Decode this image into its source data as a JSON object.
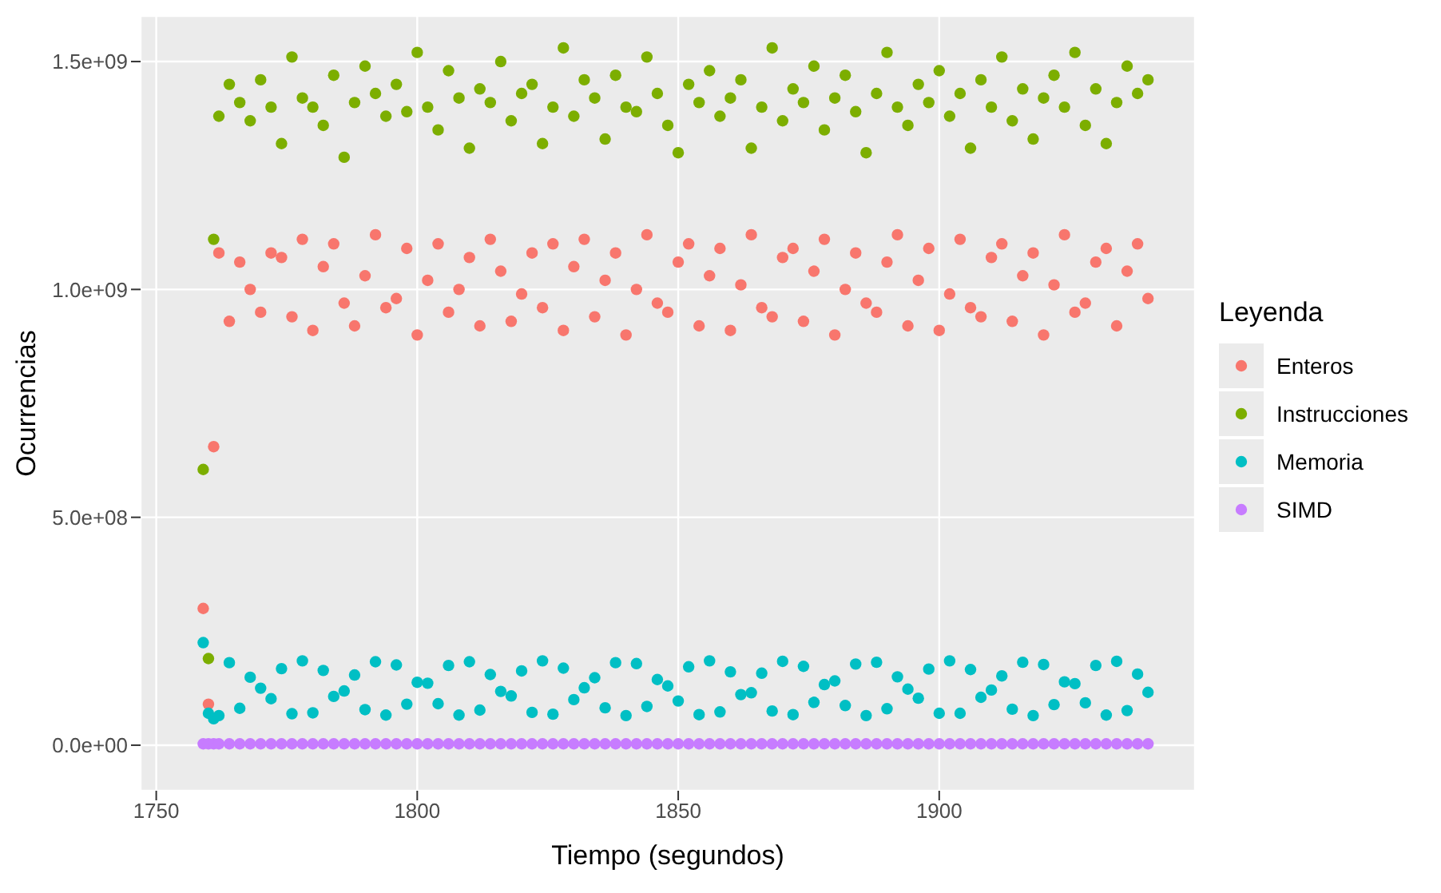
{
  "chart_data": {
    "type": "scatter",
    "xlabel": "Tiempo (segundos)",
    "ylabel": "Ocurrencias",
    "legend_title": "Leyenda",
    "legend": "right",
    "grid": true,
    "marker": "circle",
    "xlim": [
      1747,
      1949
    ],
    "xticks": [
      1750,
      1800,
      1850,
      1900
    ],
    "ylim": [
      -100000000.0,
      1600000000.0
    ],
    "yticks": [
      {
        "value": 0,
        "label": "0.0e+00"
      },
      {
        "value": 500000000.0,
        "label": "5.0e+08"
      },
      {
        "value": 1000000000.0,
        "label": "1.0e+09"
      },
      {
        "value": 1500000000.0,
        "label": "1.5e+09"
      }
    ],
    "x": [
      1759,
      1760,
      1761,
      1762,
      1764,
      1766,
      1768,
      1770,
      1772,
      1774,
      1776,
      1778,
      1780,
      1782,
      1784,
      1786,
      1788,
      1790,
      1792,
      1794,
      1796,
      1798,
      1800,
      1802,
      1804,
      1806,
      1808,
      1810,
      1812,
      1814,
      1816,
      1818,
      1820,
      1822,
      1824,
      1826,
      1828,
      1830,
      1832,
      1834,
      1836,
      1838,
      1840,
      1842,
      1844,
      1846,
      1848,
      1850,
      1852,
      1854,
      1856,
      1858,
      1860,
      1862,
      1864,
      1866,
      1868,
      1870,
      1872,
      1874,
      1876,
      1878,
      1880,
      1882,
      1884,
      1886,
      1888,
      1890,
      1892,
      1894,
      1896,
      1898,
      1900,
      1902,
      1904,
      1906,
      1908,
      1910,
      1912,
      1914,
      1916,
      1918,
      1920,
      1922,
      1924,
      1926,
      1928,
      1930,
      1932,
      1934,
      1936,
      1938,
      1940
    ],
    "series": [
      {
        "name": "Enteros",
        "color": "#f8766d",
        "values": [
          300000000.0,
          90000000.0,
          655000000.0,
          1080000000.0,
          930000000.0,
          1060000000.0,
          1000000000.0,
          950000000.0,
          1080000000.0,
          1070000000.0,
          940000000.0,
          1110000000.0,
          910000000.0,
          1050000000.0,
          1100000000.0,
          970000000.0,
          920000000.0,
          1030000000.0,
          1120000000.0,
          960000000.0,
          980000000.0,
          1090000000.0,
          900000000.0,
          1020000000.0,
          1100000000.0,
          950000000.0,
          1000000000.0,
          1070000000.0,
          920000000.0,
          1110000000.0,
          1040000000.0,
          930000000.0,
          990000000.0,
          1080000000.0,
          960000000.0,
          1100000000.0,
          910000000.0,
          1050000000.0,
          1110000000.0,
          940000000.0,
          1020000000.0,
          1080000000.0,
          900000000.0,
          1000000000.0,
          1120000000.0,
          970000000.0,
          950000000.0,
          1060000000.0,
          1100000000.0,
          920000000.0,
          1030000000.0,
          1090000000.0,
          910000000.0,
          1010000000.0,
          1120000000.0,
          960000000.0,
          940000000.0,
          1070000000.0,
          1090000000.0,
          930000000.0,
          1040000000.0,
          1110000000.0,
          900000000.0,
          1000000000.0,
          1080000000.0,
          970000000.0,
          950000000.0,
          1060000000.0,
          1120000000.0,
          920000000.0,
          1020000000.0,
          1090000000.0,
          910000000.0,
          990000000.0,
          1110000000.0,
          960000000.0,
          940000000.0,
          1070000000.0,
          1100000000.0,
          930000000.0,
          1030000000.0,
          1080000000.0,
          900000000.0,
          1010000000.0,
          1120000000.0,
          950000000.0,
          970000000.0,
          1060000000.0,
          1090000000.0,
          920000000.0,
          1040000000.0,
          1100000000.0,
          980000000.0
        ]
      },
      {
        "name": "Instrucciones",
        "color": "#7cae00",
        "values": [
          605000000.0,
          190000000.0,
          1110000000.0,
          1380000000.0,
          1450000000.0,
          1410000000.0,
          1370000000.0,
          1460000000.0,
          1400000000.0,
          1320000000.0,
          1510000000.0,
          1420000000.0,
          1400000000.0,
          1360000000.0,
          1470000000.0,
          1290000000.0,
          1410000000.0,
          1490000000.0,
          1430000000.0,
          1380000000.0,
          1450000000.0,
          1390000000.0,
          1520000000.0,
          1400000000.0,
          1350000000.0,
          1480000000.0,
          1420000000.0,
          1310000000.0,
          1440000000.0,
          1410000000.0,
          1500000000.0,
          1370000000.0,
          1430000000.0,
          1450000000.0,
          1320000000.0,
          1400000000.0,
          1530000000.0,
          1380000000.0,
          1460000000.0,
          1420000000.0,
          1330000000.0,
          1470000000.0,
          1400000000.0,
          1390000000.0,
          1510000000.0,
          1430000000.0,
          1360000000.0,
          1300000000.0,
          1450000000.0,
          1410000000.0,
          1480000000.0,
          1380000000.0,
          1420000000.0,
          1460000000.0,
          1310000000.0,
          1400000000.0,
          1530000000.0,
          1370000000.0,
          1440000000.0,
          1410000000.0,
          1490000000.0,
          1350000000.0,
          1420000000.0,
          1470000000.0,
          1390000000.0,
          1300000000.0,
          1430000000.0,
          1520000000.0,
          1400000000.0,
          1360000000.0,
          1450000000.0,
          1410000000.0,
          1480000000.0,
          1380000000.0,
          1430000000.0,
          1310000000.0,
          1460000000.0,
          1400000000.0,
          1510000000.0,
          1370000000.0,
          1440000000.0,
          1330000000.0,
          1420000000.0,
          1470000000.0,
          1400000000.0,
          1520000000.0,
          1360000000.0,
          1440000000.0,
          1320000000.0,
          1410000000.0,
          1490000000.0,
          1430000000.0,
          1460000000.0
        ]
      },
      {
        "name": "Memoria",
        "color": "#00bfc4",
        "values": [
          225000000.0,
          70000000.0,
          58000000.0,
          65000000.0,
          181000000.0,
          81000000.0,
          149000000.0,
          125000000.0,
          102000000.0,
          168000000.0,
          69000000.0,
          185000000.0,
          71000000.0,
          164000000.0,
          107000000.0,
          119000000.0,
          154000000.0,
          78000000.0,
          183000000.0,
          66000000.0,
          176000000.0,
          90000000.0,
          138000000.0,
          136000000.0,
          91000000.0,
          175000000.0,
          66000000.0,
          183000000.0,
          77000000.0,
          155000000.0,
          118000000.0,
          108000000.0,
          163000000.0,
          72000000.0,
          185000000.0,
          68000000.0,
          169000000.0,
          100000000.0,
          126000000.0,
          148000000.0,
          82000000.0,
          181000000.0,
          65000000.0,
          179000000.0,
          85000000.0,
          144000000.0,
          130000000.0,
          97000000.0,
          172000000.0,
          67000000.0,
          185000000.0,
          73000000.0,
          161000000.0,
          111000000.0,
          115000000.0,
          158000000.0,
          75000000.0,
          184000000.0,
          67000000.0,
          173000000.0,
          94000000.0,
          133000000.0,
          141000000.0,
          87000000.0,
          178000000.0,
          65000000.0,
          182000000.0,
          80000000.0,
          150000000.0,
          123000000.0,
          103000000.0,
          167000000.0,
          70000000.0,
          185000000.0,
          70000000.0,
          166000000.0,
          105000000.0,
          121000000.0,
          152000000.0,
          79000000.0,
          182000000.0,
          65000000.0,
          177000000.0,
          89000000.0,
          139000000.0,
          135000000.0,
          93000000.0,
          175000000.0,
          66000000.0,
          184000000.0,
          76000000.0,
          156000000.0,
          116000000.0
        ]
      },
      {
        "name": "SIMD",
        "color": "#c77cff",
        "values": [
          3000000.0,
          3000000.0,
          3000000.0,
          3000000.0,
          3000000.0,
          3000000.0,
          3000000.0,
          3000000.0,
          3000000.0,
          3000000.0,
          3000000.0,
          3000000.0,
          3000000.0,
          3000000.0,
          3000000.0,
          3000000.0,
          3000000.0,
          3000000.0,
          3000000.0,
          3000000.0,
          3000000.0,
          3000000.0,
          3000000.0,
          3000000.0,
          3000000.0,
          3000000.0,
          3000000.0,
          3000000.0,
          3000000.0,
          3000000.0,
          3000000.0,
          3000000.0,
          3000000.0,
          3000000.0,
          3000000.0,
          3000000.0,
          3000000.0,
          3000000.0,
          3000000.0,
          3000000.0,
          3000000.0,
          3000000.0,
          3000000.0,
          3000000.0,
          3000000.0,
          3000000.0,
          3000000.0,
          3000000.0,
          3000000.0,
          3000000.0,
          3000000.0,
          3000000.0,
          3000000.0,
          3000000.0,
          3000000.0,
          3000000.0,
          3000000.0,
          3000000.0,
          3000000.0,
          3000000.0,
          3000000.0,
          3000000.0,
          3000000.0,
          3000000.0,
          3000000.0,
          3000000.0,
          3000000.0,
          3000000.0,
          3000000.0,
          3000000.0,
          3000000.0,
          3000000.0,
          3000000.0,
          3000000.0,
          3000000.0,
          3000000.0,
          3000000.0,
          3000000.0,
          3000000.0,
          3000000.0,
          3000000.0,
          3000000.0,
          3000000.0,
          3000000.0,
          3000000.0,
          3000000.0,
          3000000.0,
          3000000.0,
          3000000.0,
          3000000.0,
          3000000.0,
          3000000.0,
          3000000.0
        ]
      }
    ]
  }
}
